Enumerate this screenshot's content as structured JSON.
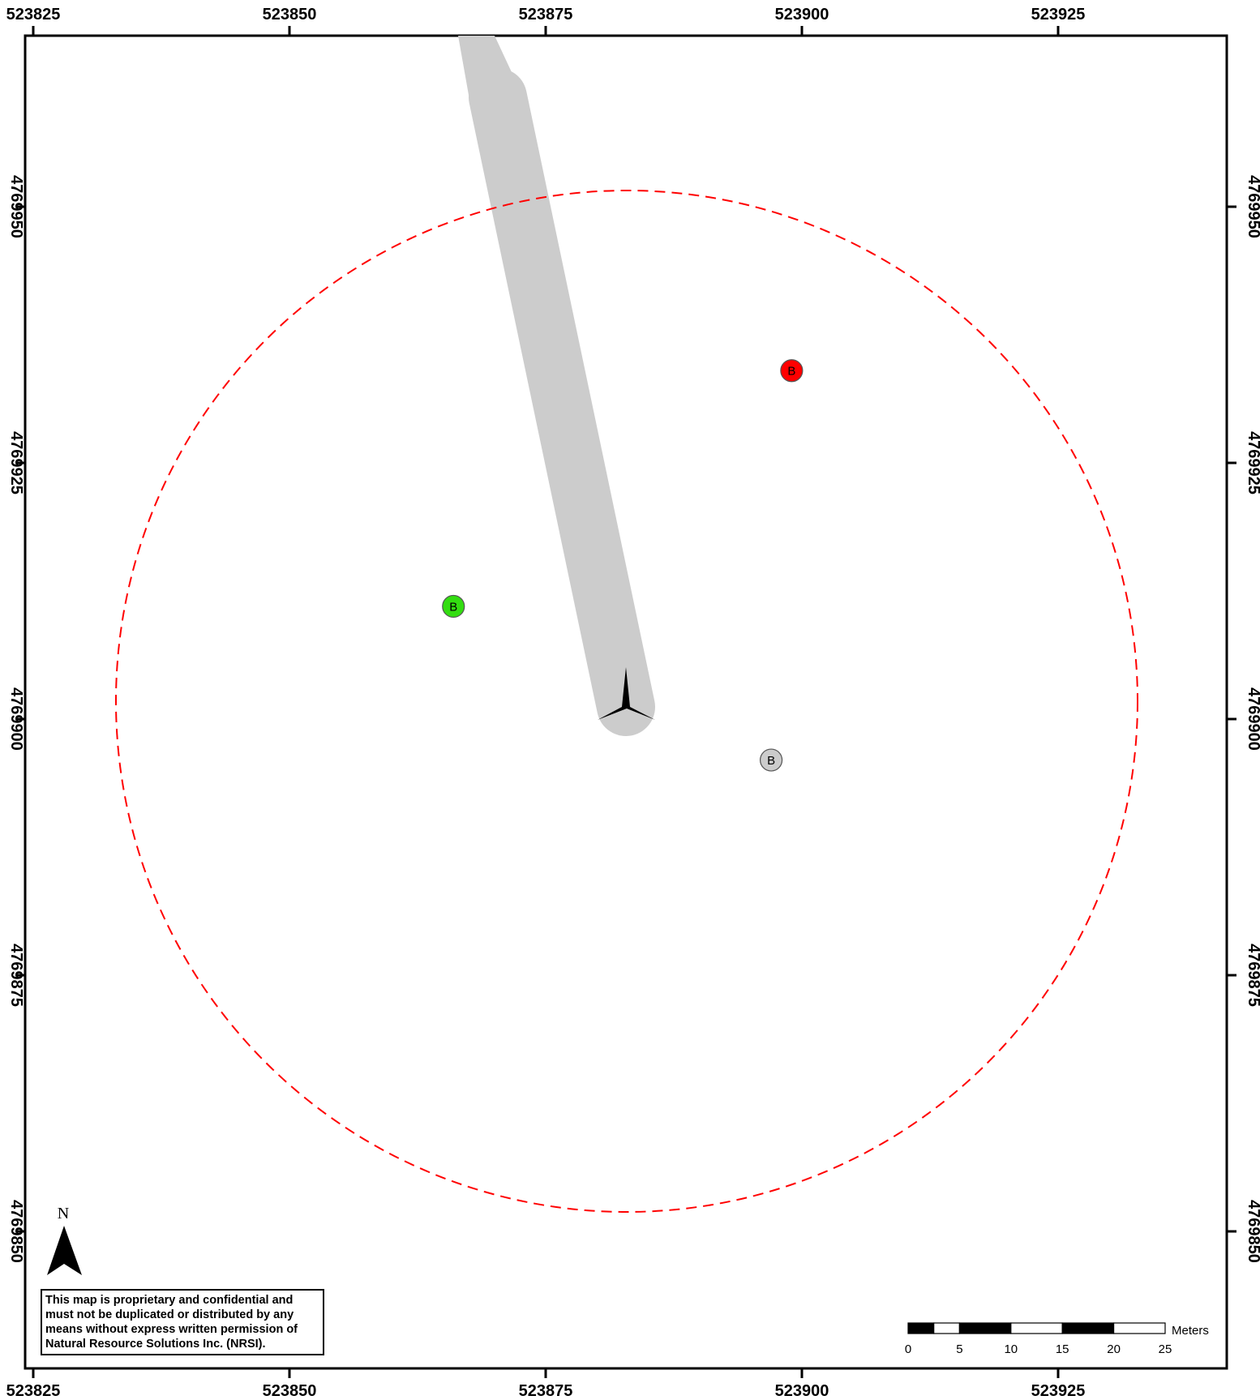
{
  "map": {
    "x_ticks": [
      "523825",
      "523850",
      "523875",
      "523900",
      "523925"
    ],
    "y_ticks": [
      "4769950",
      "4769925",
      "4769900",
      "4769875",
      "4769850"
    ],
    "buffer_color": "#ff0000",
    "road_color": "#cccccc",
    "markers": [
      {
        "name": "red-marker",
        "label": "B",
        "color": "#ff0000",
        "easting": 523899,
        "northing": 4769934
      },
      {
        "name": "green-marker",
        "label": "B",
        "color": "#33dd11",
        "easting": 523866,
        "northing": 4769911
      },
      {
        "name": "grey-marker",
        "label": "B",
        "color": "#cccccc",
        "easting": 523897,
        "northing": 4769896
      }
    ],
    "turbine": {
      "icon": "turbine-icon",
      "easting": 523883,
      "northing": 4769900
    }
  },
  "north_arrow": {
    "label": "N",
    "icon": "north-arrow-icon"
  },
  "scale_bar": {
    "unit": "Meters",
    "labels": [
      "0",
      "5",
      "10",
      "15",
      "20",
      "25"
    ]
  },
  "disclaimer": {
    "lines": [
      "This map is proprietary and confidential and",
      "must not be duplicated or distributed by any",
      "means without express written permission of",
      "Natural Resource Solutions Inc. (NRSI)."
    ]
  }
}
